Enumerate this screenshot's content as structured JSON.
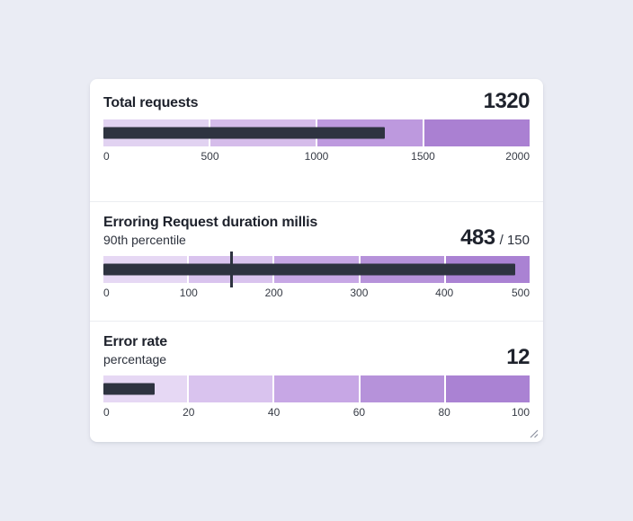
{
  "colors": {
    "page_background": "#eaecf4",
    "card_background": "#ffffff",
    "divider": "#ebedf1",
    "measure_bar": "#2e3340",
    "target_marker": "#2e3340",
    "tick_label": "#363b45",
    "title_text": "#1e222c"
  },
  "chart_data": [
    {
      "type": "bullet",
      "title": "Total requests",
      "subtitle": "",
      "value": 1320,
      "value_label": "1320",
      "target": null,
      "target_label": "",
      "min": 0,
      "max": 2000,
      "ticks": [
        "0",
        "500",
        "1000",
        "1500",
        "2000"
      ],
      "bands": [
        {
          "from": 0,
          "to": 500,
          "color": "#e1d2f1"
        },
        {
          "from": 500,
          "to": 1000,
          "color": "#d5bcea"
        },
        {
          "from": 1000,
          "to": 1500,
          "color": "#bd99de"
        },
        {
          "from": 1500,
          "to": 2000,
          "color": "#aa80d2"
        }
      ]
    },
    {
      "type": "bullet",
      "title": "Erroring Request duration millis",
      "subtitle": "90th percentile",
      "value": 483,
      "value_label": "483",
      "target": 150,
      "target_label": "/ 150",
      "min": 0,
      "max": 500,
      "ticks": [
        "0",
        "100",
        "200",
        "300",
        "400",
        "500"
      ],
      "bands": [
        {
          "from": 0,
          "to": 100,
          "color": "#e6d8f4"
        },
        {
          "from": 100,
          "to": 200,
          "color": "#d9c3ee"
        },
        {
          "from": 200,
          "to": 300,
          "color": "#c7a7e5"
        },
        {
          "from": 300,
          "to": 400,
          "color": "#b692da"
        },
        {
          "from": 400,
          "to": 500,
          "color": "#aa82d3"
        }
      ]
    },
    {
      "type": "bullet",
      "title": "Error rate",
      "subtitle": "percentage",
      "value": 12,
      "value_label": "12",
      "target": null,
      "target_label": "",
      "min": 0,
      "max": 100,
      "ticks": [
        "0",
        "20",
        "40",
        "60",
        "80",
        "100"
      ],
      "bands": [
        {
          "from": 0,
          "to": 20,
          "color": "#e6d8f4"
        },
        {
          "from": 20,
          "to": 40,
          "color": "#d9c3ee"
        },
        {
          "from": 40,
          "to": 60,
          "color": "#c7a7e5"
        },
        {
          "from": 60,
          "to": 80,
          "color": "#b692da"
        },
        {
          "from": 80,
          "to": 100,
          "color": "#aa82d3"
        }
      ]
    }
  ]
}
